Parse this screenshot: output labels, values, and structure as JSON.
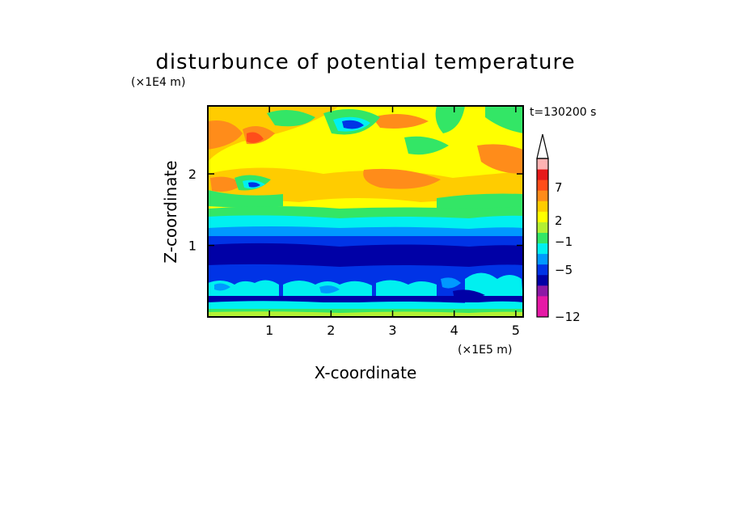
{
  "chart_data": {
    "type": "heatmap",
    "title": "disturbunce of potential temperature",
    "xlabel": "X-coordinate",
    "ylabel": "Z-coordinate",
    "x_unit": "(×1E5 m)",
    "y_unit": "(×1E4 m)",
    "time_label": "t=130200 s",
    "xlim": [
      0,
      5.12
    ],
    "ylim": [
      0,
      2.95
    ],
    "xticks": [
      "1",
      "2",
      "3",
      "4",
      "5"
    ],
    "yticks": [
      "1",
      "2"
    ],
    "colorbar": {
      "labels": [
        "7",
        "2",
        "−1",
        "−5",
        "−12"
      ],
      "extend_top": true
    },
    "description_values": {
      "upper_layer_z_range": [
        1.4,
        2.95
      ],
      "upper_layer_typical_value": 2,
      "stable_band_z_range": [
        0.55,
        1.2
      ],
      "stable_band_typical_value": -5,
      "lower_layer_z_range": [
        0,
        0.55
      ],
      "lower_layer_typical_value": -1
    },
    "grid": false,
    "legend": "right colorbar"
  },
  "colors": {
    "magenta": "#e619a6",
    "purple": "#8c19a6",
    "navy": "#0000a6",
    "blue": "#0033e6",
    "lightblue": "#0099ff",
    "cyan": "#00f0f0",
    "green": "#33e666",
    "yellowgreen": "#b3f033",
    "yellow": "#ffff00",
    "gold": "#ffcc00",
    "orange": "#ff8c1a",
    "redorange": "#ff4d1a",
    "red": "#e61a1a",
    "pink": "#ffb3b3"
  }
}
